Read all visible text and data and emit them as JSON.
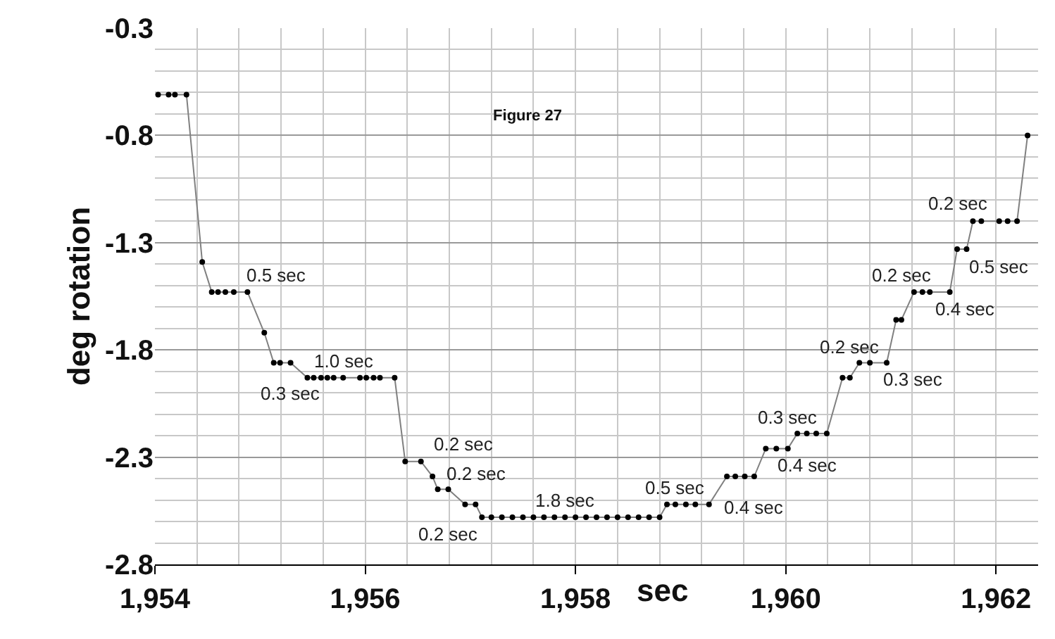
{
  "chart_data": {
    "type": "line",
    "title": "Figure 27",
    "xlabel": "sec",
    "ylabel": "deg rotation",
    "x": [
      1954.03,
      1954.13,
      1954.19,
      1954.3,
      1954.45,
      1954.54,
      1954.6,
      1954.67,
      1954.75,
      1954.88,
      1955.04,
      1955.13,
      1955.19,
      1955.29,
      1955.45,
      1955.51,
      1955.58,
      1955.64,
      1955.7,
      1955.79,
      1955.95,
      1956.01,
      1956.08,
      1956.14,
      1956.28,
      1956.38,
      1956.53,
      1956.64,
      1956.69,
      1956.79,
      1956.95,
      1957.05,
      1957.11,
      1957.2,
      1957.3,
      1957.4,
      1957.5,
      1957.6,
      1957.7,
      1957.8,
      1957.9,
      1958.0,
      1958.1,
      1958.2,
      1958.3,
      1958.4,
      1958.5,
      1958.6,
      1958.7,
      1958.8,
      1958.87,
      1958.95,
      1959.05,
      1959.14,
      1959.27,
      1959.44,
      1959.52,
      1959.61,
      1959.7,
      1959.81,
      1959.91,
      1960.02,
      1960.11,
      1960.2,
      1960.29,
      1960.39,
      1960.54,
      1960.61,
      1960.7,
      1960.8,
      1960.96,
      1961.05,
      1961.1,
      1961.22,
      1961.3,
      1961.37,
      1961.56,
      1961.63,
      1961.72,
      1961.78,
      1961.86,
      1962.03,
      1962.11,
      1962.2,
      1962.3
    ],
    "series": [
      {
        "color": "#000000",
        "values": [
          -0.61,
          -0.61,
          -0.61,
          -0.61,
          -1.39,
          -1.53,
          -1.53,
          -1.53,
          -1.53,
          -1.53,
          -1.72,
          -1.86,
          -1.86,
          -1.86,
          -1.93,
          -1.93,
          -1.93,
          -1.93,
          -1.93,
          -1.93,
          -1.93,
          -1.93,
          -1.93,
          -1.93,
          -1.93,
          -2.32,
          -2.32,
          -2.39,
          -2.45,
          -2.45,
          -2.52,
          -2.52,
          -2.58,
          -2.58,
          -2.58,
          -2.58,
          -2.58,
          -2.58,
          -2.58,
          -2.58,
          -2.58,
          -2.58,
          -2.58,
          -2.58,
          -2.58,
          -2.58,
          -2.58,
          -2.58,
          -2.58,
          -2.58,
          -2.52,
          -2.52,
          -2.52,
          -2.52,
          -2.52,
          -2.39,
          -2.39,
          -2.39,
          -2.39,
          -2.26,
          -2.26,
          -2.26,
          -2.19,
          -2.19,
          -2.19,
          -2.19,
          -1.93,
          -1.93,
          -1.86,
          -1.86,
          -1.86,
          -1.66,
          -1.66,
          -1.53,
          -1.53,
          -1.53,
          -1.53,
          -1.33,
          -1.33,
          -1.2,
          -1.2,
          -1.2,
          -1.2,
          -1.2,
          -0.8
        ]
      }
    ],
    "xlim": [
      1954,
      1962.4
    ],
    "ylim": [
      -2.8,
      -0.3
    ],
    "xticks": [
      {
        "value": 1954,
        "label": "1,954"
      },
      {
        "value": 1956,
        "label": "1,956"
      },
      {
        "value": 1958,
        "label": "1,958"
      },
      {
        "value": 1960,
        "label": "1,960"
      },
      {
        "value": 1962,
        "label": "1,962"
      }
    ],
    "yticks": [
      -2.8,
      -2.3,
      -1.8,
      -1.3,
      -0.8,
      -0.3
    ],
    "grid": true,
    "marker": "circle",
    "line_style": "solid",
    "annotations": [
      {
        "text": "0.5 sec",
        "x": 1954.75,
        "y": -1.53
      },
      {
        "text": "0.3 sec",
        "x": 1955.29,
        "y": -1.86
      },
      {
        "text": "1.0 sec",
        "x": 1955.79,
        "y": -1.93
      },
      {
        "text": "0.2 sec",
        "x": 1956.53,
        "y": -2.32
      },
      {
        "text": "0.2 sec",
        "x": 1956.79,
        "y": -2.45
      },
      {
        "text": "0.2 sec",
        "x": 1957.05,
        "y": -2.52
      },
      {
        "text": "1.8 sec",
        "x": 1957.9,
        "y": -2.58
      },
      {
        "text": "0.5 sec",
        "x": 1958.95,
        "y": -2.52
      },
      {
        "text": "0.4 sec",
        "x": 1959.7,
        "y": -2.39
      },
      {
        "text": "0.3 sec",
        "x": 1960.02,
        "y": -2.26
      },
      {
        "text": "0.4 sec",
        "x": 1960.2,
        "y": -2.19
      },
      {
        "text": "0.2 sec",
        "x": 1960.61,
        "y": -1.93
      },
      {
        "text": "0.3 sec",
        "x": 1960.8,
        "y": -1.86
      },
      {
        "text": "0.2 sec",
        "x": 1961.1,
        "y": -1.66
      },
      {
        "text": "0.4 sec",
        "x": 1961.3,
        "y": -1.53
      },
      {
        "text": "0.2 sec",
        "x": 1961.63,
        "y": -1.33
      },
      {
        "text": "0.5 sec",
        "x": 1962.03,
        "y": -1.2
      }
    ]
  }
}
